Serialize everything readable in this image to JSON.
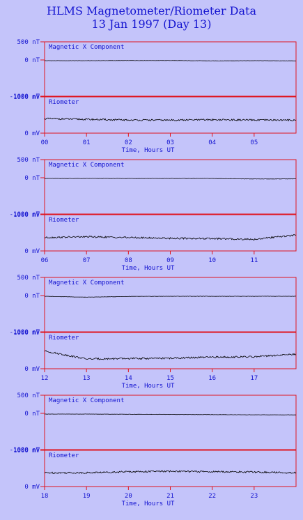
{
  "header": {
    "title": "HLMS Magnetometer/Riometer Data",
    "subtitle": "13 Jan 1997 (Day 13)"
  },
  "colors": {
    "background": "#c4c4fa",
    "frame": "#e0141e",
    "text": "#1414d0",
    "trace": "#000000"
  },
  "labels": {
    "mag_panel": "Magnetic X Component",
    "rio_panel": "Riometer",
    "mag_ticks": [
      "500 nT",
      "0 nT",
      "-1000 nT"
    ],
    "rio_ticks": [
      "1000 mV",
      "0 mV"
    ],
    "xlabel": "Time, Hours UT"
  },
  "chart_data": [
    {
      "type": "line",
      "hours": [
        "00",
        "01",
        "02",
        "03",
        "04",
        "05"
      ],
      "x_range_h": [
        0,
        6
      ],
      "mag_ylim": [
        -1000,
        500
      ],
      "rio_ylim": [
        0,
        1000
      ],
      "series": [
        {
          "name": "Magnetic X Component",
          "unit": "nT",
          "x": [
            0,
            1,
            2,
            3,
            4,
            5,
            6
          ],
          "values": [
            -20,
            -20,
            -15,
            -15,
            -25,
            -20,
            -25
          ]
        },
        {
          "name": "Riometer",
          "unit": "mV",
          "x": [
            0,
            1,
            2,
            3,
            4,
            5,
            6
          ],
          "values": [
            400,
            380,
            360,
            360,
            370,
            360,
            360
          ]
        }
      ]
    },
    {
      "type": "line",
      "hours": [
        "06",
        "07",
        "08",
        "09",
        "10",
        "11"
      ],
      "x_range_h": [
        6,
        12
      ],
      "mag_ylim": [
        -1000,
        500
      ],
      "rio_ylim": [
        0,
        1000
      ],
      "series": [
        {
          "name": "Magnetic X Component",
          "unit": "nT",
          "x": [
            6,
            7,
            8,
            9,
            10,
            11,
            12
          ],
          "values": [
            -20,
            -20,
            -20,
            -20,
            -20,
            -35,
            -30
          ]
        },
        {
          "name": "Riometer",
          "unit": "mV",
          "x": [
            6,
            7,
            8,
            9,
            10,
            11,
            12
          ],
          "values": [
            370,
            390,
            370,
            350,
            340,
            320,
            440
          ]
        }
      ]
    },
    {
      "type": "line",
      "hours": [
        "12",
        "13",
        "14",
        "15",
        "16",
        "17"
      ],
      "x_range_h": [
        12,
        18
      ],
      "mag_ylim": [
        -1000,
        500
      ],
      "rio_ylim": [
        0,
        1000
      ],
      "series": [
        {
          "name": "Magnetic X Component",
          "unit": "nT",
          "x": [
            12,
            13,
            14,
            15,
            16,
            17,
            18
          ],
          "values": [
            -20,
            -45,
            -25,
            -20,
            -20,
            -20,
            -20
          ]
        },
        {
          "name": "Riometer",
          "unit": "mV",
          "x": [
            12,
            13,
            14,
            15,
            16,
            17,
            18
          ],
          "values": [
            490,
            270,
            280,
            290,
            320,
            330,
            400
          ]
        }
      ]
    },
    {
      "type": "line",
      "hours": [
        "18",
        "19",
        "20",
        "21",
        "22",
        "23"
      ],
      "x_range_h": [
        18,
        24
      ],
      "mag_ylim": [
        -1000,
        500
      ],
      "rio_ylim": [
        0,
        1000
      ],
      "series": [
        {
          "name": "Magnetic X Component",
          "unit": "nT",
          "x": [
            18,
            19,
            20,
            21,
            22,
            23,
            24
          ],
          "values": [
            -20,
            -20,
            -25,
            -30,
            -35,
            -40,
            -40
          ]
        },
        {
          "name": "Riometer",
          "unit": "mV",
          "x": [
            18,
            19,
            20,
            21,
            22,
            23,
            24
          ],
          "values": [
            380,
            380,
            410,
            420,
            410,
            400,
            380
          ]
        }
      ]
    }
  ]
}
